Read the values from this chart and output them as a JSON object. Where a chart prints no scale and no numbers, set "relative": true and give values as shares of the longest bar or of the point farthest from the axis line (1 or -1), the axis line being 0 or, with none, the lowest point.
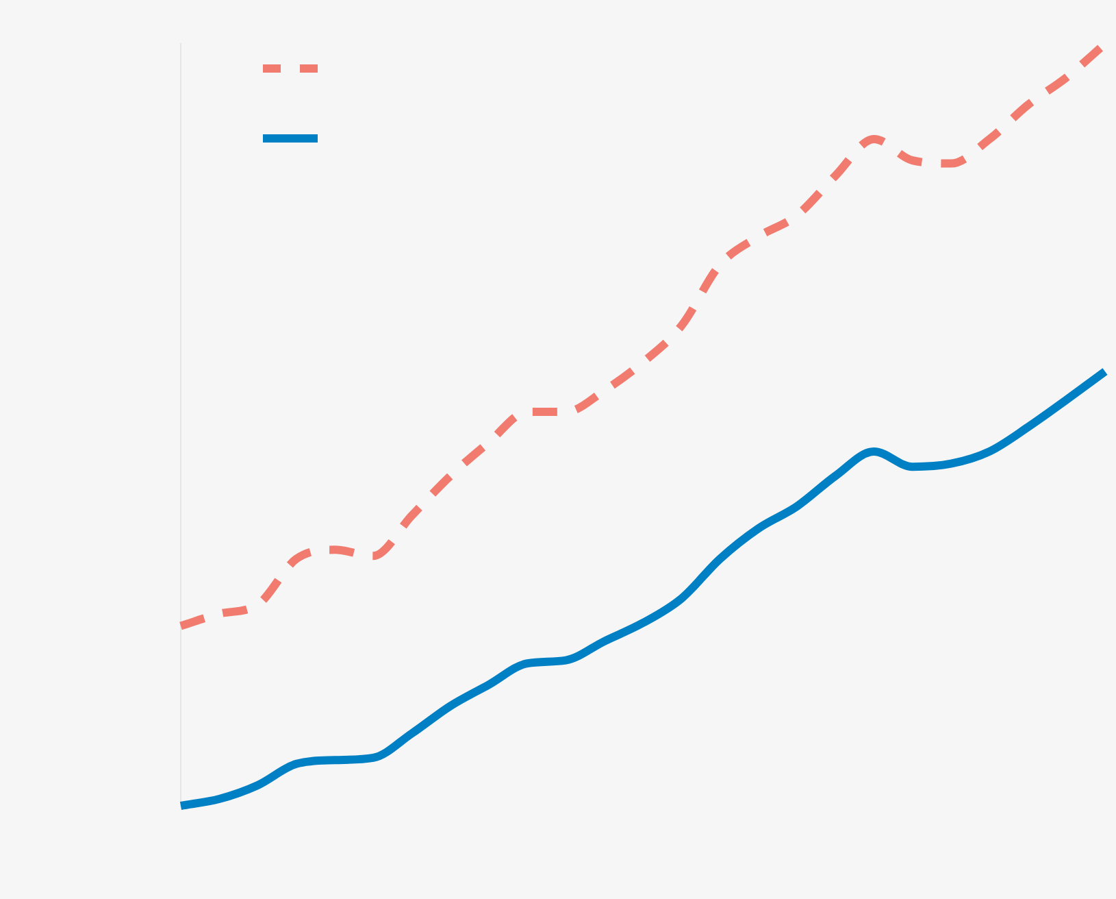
{
  "chart_data": {
    "type": "line",
    "relative": true,
    "categories": [
      null,
      null,
      null,
      null,
      null,
      null,
      null,
      null,
      null,
      null,
      null,
      null,
      null,
      null,
      null,
      null,
      null,
      null,
      null,
      null,
      null,
      null,
      null,
      null,
      null
    ],
    "series": [
      {
        "color": "#f07b6e",
        "line_style": "dashed",
        "values": [
          0.236,
          0.252,
          0.264,
          0.324,
          0.336,
          0.328,
          0.381,
          0.433,
          0.477,
          0.517,
          0.517,
          0.545,
          0.582,
          0.63,
          0.71,
          0.747,
          0.775,
          0.827,
          0.875,
          0.847,
          0.843,
          0.875,
          0.92,
          0.956,
          1
        ]
      },
      {
        "color": "#0080c4",
        "line_style": "solid",
        "values": [
          0,
          0.009,
          0.027,
          0.055,
          0.06,
          0.063,
          0.095,
          0.131,
          0.159,
          0.187,
          0.191,
          0.216,
          0.24,
          0.272,
          0.324,
          0.364,
          0.393,
          0.433,
          0.465,
          0.445,
          0.449,
          0.465,
          0.497,
          0.533,
          0.57
        ]
      }
    ],
    "marker": "none"
  }
}
